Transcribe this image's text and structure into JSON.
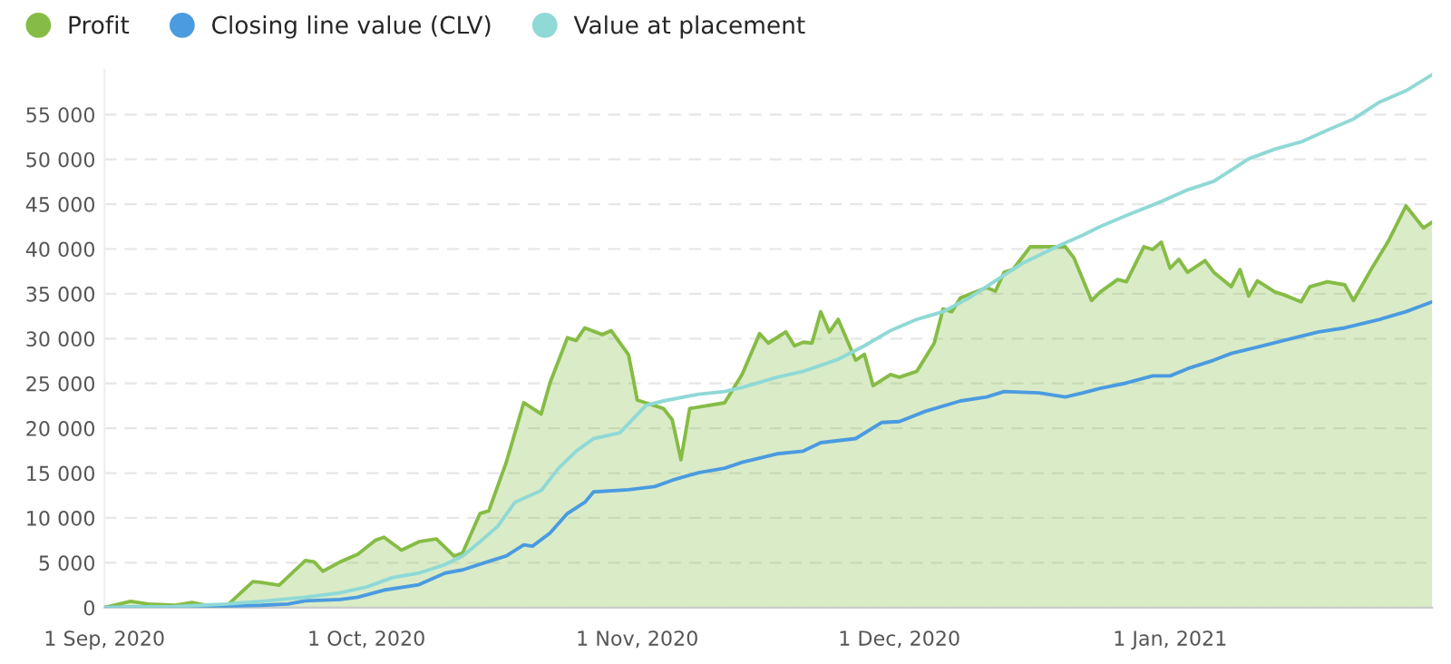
{
  "chart_data": {
    "type": "line",
    "legend": "top left",
    "grid": "y",
    "xlim": [
      "2020-09-01",
      "2021-01-31"
    ],
    "xticks": [
      {
        "value": "2020-09-01",
        "label": "1 Sep, 2020"
      },
      {
        "value": "2020-10-01",
        "label": "1 Oct, 2020"
      },
      {
        "value": "2020-11-01",
        "label": "1 Nov, 2020"
      },
      {
        "value": "2020-12-01",
        "label": "1 Dec, 2020"
      },
      {
        "value": "2021-01-01",
        "label": "1 Jan, 2021"
      }
    ],
    "ylim": [
      0,
      60000
    ],
    "yticks": [
      0,
      {
        "value": 5000,
        "label": "5 000"
      },
      {
        "value": 10000,
        "label": "10 000"
      },
      {
        "value": 15000,
        "label": "15 000"
      },
      {
        "value": 20000,
        "label": "20 000"
      },
      {
        "value": 25000,
        "label": "25 000"
      },
      {
        "value": 30000,
        "label": "30 000"
      },
      {
        "value": 35000,
        "label": "35 000"
      },
      {
        "value": 40000,
        "label": "40 000"
      },
      {
        "value": 45000,
        "label": "45 000"
      },
      {
        "value": 50000,
        "label": "50 000"
      },
      {
        "value": 55000,
        "label": "55 000"
      }
    ],
    "series": [
      {
        "name": "Profit",
        "type": "area",
        "color": "#86bc45",
        "x": [
          "2020-09-01",
          "2020-09-04",
          "2020-09-06",
          "2020-09-09",
          "2020-09-11",
          "2020-09-13",
          "2020-09-15",
          "2020-09-18",
          "2020-09-19",
          "2020-09-21",
          "2020-09-24",
          "2020-09-25",
          "2020-09-26",
          "2020-09-28",
          "2020-09-30",
          "2020-10-02",
          "2020-10-03",
          "2020-10-05",
          "2020-10-07",
          "2020-10-09",
          "2020-10-11",
          "2020-10-12",
          "2020-10-14",
          "2020-10-15",
          "2020-10-17",
          "2020-10-19",
          "2020-10-21",
          "2020-10-22",
          "2020-10-24",
          "2020-10-25",
          "2020-10-26",
          "2020-10-28",
          "2020-10-29",
          "2020-10-31",
          "2020-11-01",
          "2020-11-04",
          "2020-11-05",
          "2020-11-06",
          "2020-11-07",
          "2020-11-11",
          "2020-11-13",
          "2020-11-15",
          "2020-11-16",
          "2020-11-18",
          "2020-11-19",
          "2020-11-20",
          "2020-11-21",
          "2020-11-22",
          "2020-11-23",
          "2020-11-24",
          "2020-11-26",
          "2020-11-27",
          "2020-11-28",
          "2020-11-30",
          "2020-12-01",
          "2020-12-03",
          "2020-12-05",
          "2020-12-06",
          "2020-12-07",
          "2020-12-08",
          "2020-12-11",
          "2020-12-12",
          "2020-12-13",
          "2020-12-14",
          "2020-12-16",
          "2020-12-20",
          "2020-12-21",
          "2020-12-23",
          "2020-12-24",
          "2020-12-26",
          "2020-12-27",
          "2020-12-29",
          "2020-12-30",
          "2020-12-31",
          "2021-01-01",
          "2021-01-02",
          "2021-01-03",
          "2021-01-05",
          "2021-01-06",
          "2021-01-08",
          "2021-01-09",
          "2021-01-10",
          "2021-01-11",
          "2021-01-13",
          "2021-01-14",
          "2021-01-16",
          "2021-01-17",
          "2021-01-19",
          "2021-01-21",
          "2021-01-22",
          "2021-01-24",
          "2021-01-26",
          "2021-01-28",
          "2021-01-30",
          "2021-01-31"
        ],
        "values": [
          0,
          700,
          400,
          250,
          570,
          200,
          200,
          2900,
          2800,
          2500,
          5250,
          5100,
          4050,
          5100,
          5950,
          7500,
          7850,
          6400,
          7350,
          7650,
          5750,
          6100,
          10500,
          10800,
          16200,
          22850,
          21600,
          25050,
          30100,
          29800,
          31200,
          30450,
          30900,
          28200,
          23150,
          22200,
          20950,
          16500,
          22200,
          22850,
          26000,
          30550,
          29500,
          30750,
          29200,
          29600,
          29500,
          33000,
          30750,
          32150,
          27600,
          28250,
          24750,
          26000,
          25700,
          26350,
          29500,
          33300,
          33000,
          34550,
          35700,
          35300,
          37400,
          37700,
          40250,
          40250,
          39000,
          34250,
          35200,
          36600,
          36350,
          40250,
          39950,
          40750,
          37850,
          38850,
          37400,
          38700,
          37400,
          35800,
          37700,
          34750,
          36450,
          35200,
          34900,
          34100,
          35800,
          36350,
          36000,
          34250,
          37700,
          40900,
          44800,
          42350,
          43000
        ]
      },
      {
        "name": "Closing line value (CLV)",
        "color": "#4a9be0",
        "x": [
          "2020-09-01",
          "2020-09-13",
          "2020-09-19",
          "2020-09-22",
          "2020-09-24",
          "2020-09-28",
          "2020-09-30",
          "2020-10-03",
          "2020-10-07",
          "2020-10-10",
          "2020-10-12",
          "2020-10-15",
          "2020-10-17",
          "2020-10-19",
          "2020-10-20",
          "2020-10-22",
          "2020-10-24",
          "2020-10-26",
          "2020-10-27",
          "2020-10-31",
          "2020-11-03",
          "2020-11-05",
          "2020-11-08",
          "2020-11-11",
          "2020-11-13",
          "2020-11-17",
          "2020-11-20",
          "2020-11-22",
          "2020-11-26",
          "2020-11-29",
          "2020-12-01",
          "2020-12-04",
          "2020-12-08",
          "2020-12-11",
          "2020-12-13",
          "2020-12-17",
          "2020-12-20",
          "2020-12-22",
          "2020-12-24",
          "2020-12-27",
          "2020-12-30",
          "2021-01-01",
          "2021-01-03",
          "2021-01-06",
          "2021-01-08",
          "2021-01-11",
          "2021-01-14",
          "2021-01-18",
          "2021-01-21",
          "2021-01-25",
          "2021-01-28",
          "2021-01-31"
        ],
        "values": [
          0,
          100,
          250,
          400,
          750,
          900,
          1150,
          1950,
          2550,
          3850,
          4200,
          5150,
          5750,
          7000,
          6850,
          8300,
          10500,
          11750,
          12900,
          13150,
          13500,
          14200,
          15050,
          15550,
          16200,
          17150,
          17450,
          18400,
          18850,
          20650,
          20750,
          21900,
          23050,
          23500,
          24100,
          23950,
          23500,
          23950,
          24450,
          25050,
          25850,
          25850,
          26650,
          27600,
          28350,
          29050,
          29800,
          30750,
          31200,
          32150,
          33000,
          34100
        ]
      },
      {
        "name": "Value at placement",
        "color": "#8fd9d6",
        "x": [
          "2020-09-01",
          "2020-09-09",
          "2020-09-15",
          "2020-09-19",
          "2020-09-24",
          "2020-09-28",
          "2020-10-01",
          "2020-10-04",
          "2020-10-07",
          "2020-10-10",
          "2020-10-12",
          "2020-10-14",
          "2020-10-16",
          "2020-10-18",
          "2020-10-21",
          "2020-10-23",
          "2020-10-25",
          "2020-10-27",
          "2020-10-30",
          "2020-11-02",
          "2020-11-04",
          "2020-11-08",
          "2020-11-11",
          "2020-11-13",
          "2020-11-17",
          "2020-11-20",
          "2020-11-24",
          "2020-11-27",
          "2020-11-30",
          "2020-12-03",
          "2020-12-06",
          "2020-12-09",
          "2020-12-12",
          "2020-12-15",
          "2020-12-19",
          "2020-12-22",
          "2020-12-24",
          "2020-12-27",
          "2020-12-31",
          "2021-01-03",
          "2021-01-06",
          "2021-01-10",
          "2021-01-13",
          "2021-01-16",
          "2021-01-19",
          "2021-01-22",
          "2021-01-25",
          "2021-01-28",
          "2021-01-31"
        ],
        "values": [
          0,
          100,
          400,
          700,
          1150,
          1650,
          2300,
          3350,
          3850,
          4800,
          5750,
          7350,
          9050,
          11750,
          13050,
          15550,
          17450,
          18850,
          19500,
          22550,
          23050,
          23800,
          24100,
          24550,
          25700,
          26350,
          27700,
          29200,
          30900,
          32150,
          33000,
          34550,
          36450,
          38350,
          40250,
          41550,
          42500,
          43750,
          45300,
          46600,
          47550,
          50050,
          51150,
          51950,
          53250,
          54500,
          56400,
          57650,
          59450
        ]
      }
    ]
  }
}
